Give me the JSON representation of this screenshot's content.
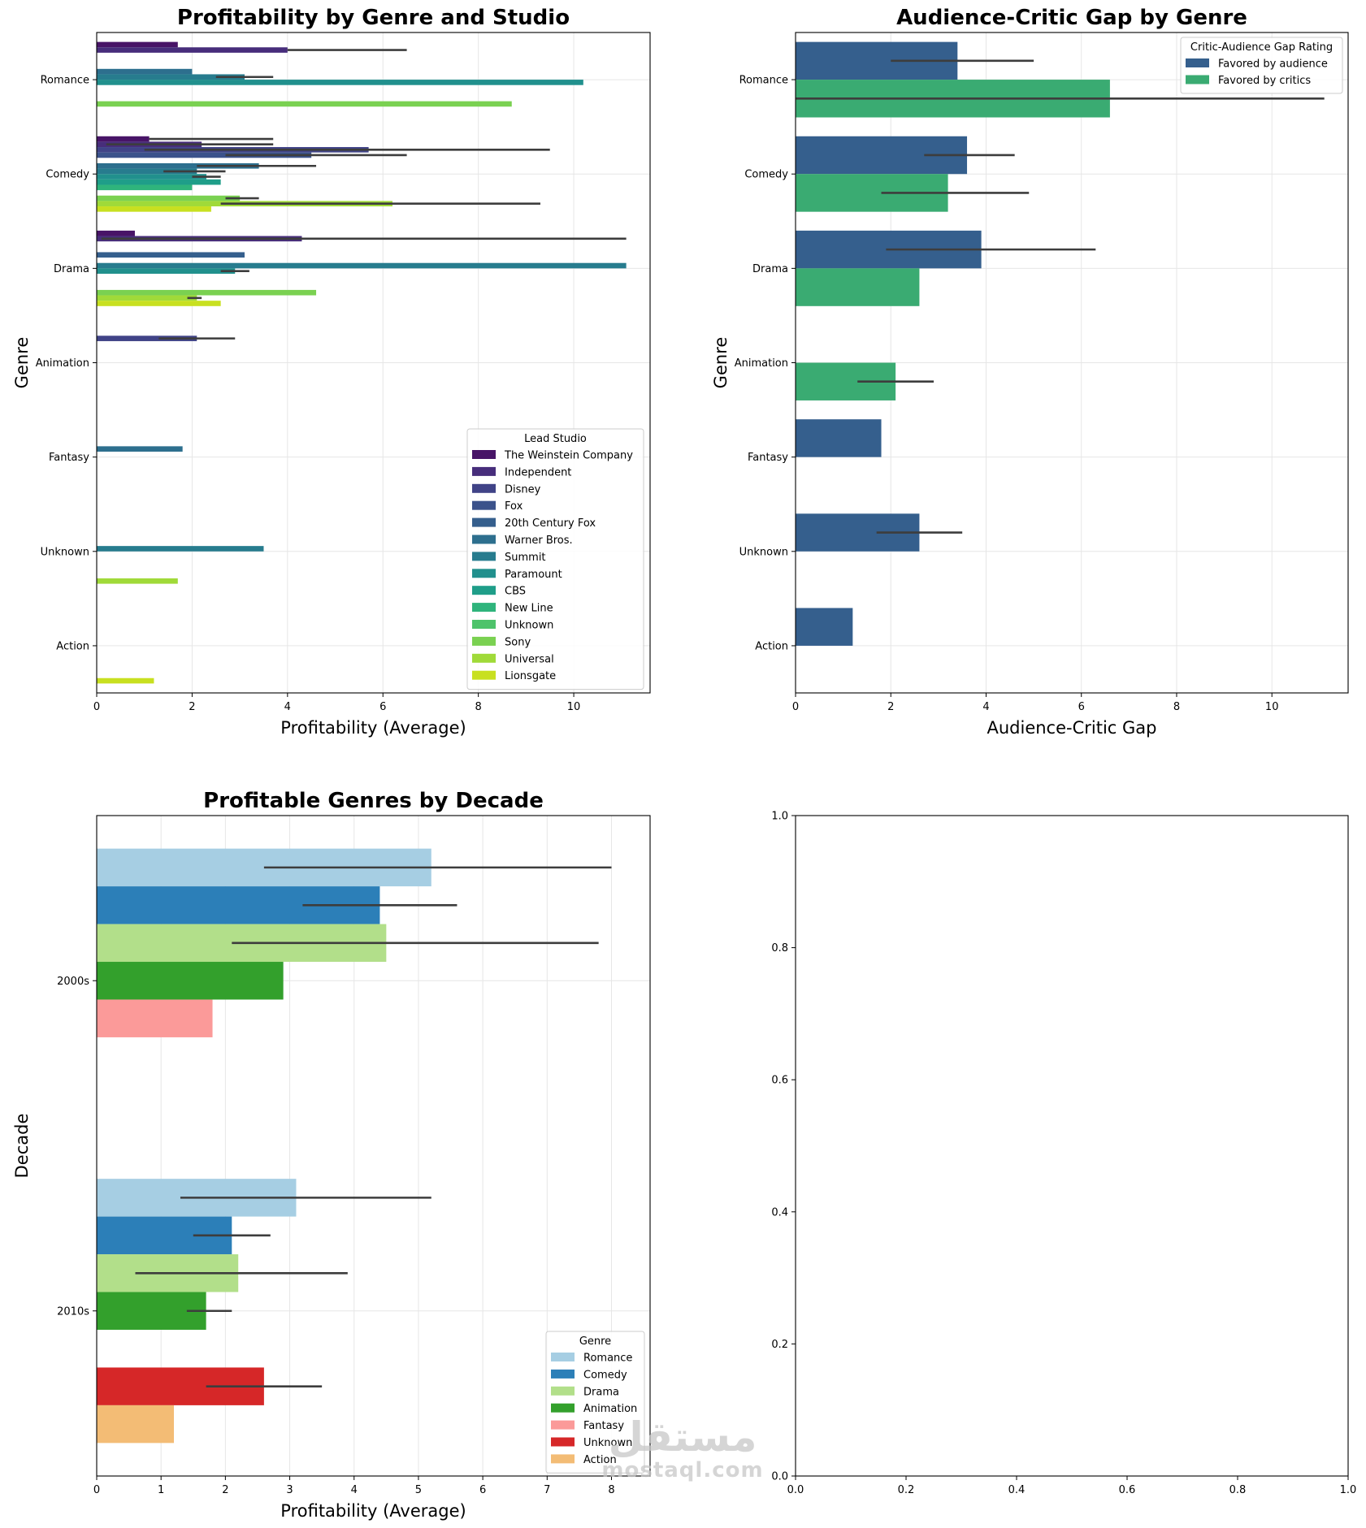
{
  "colors": {
    "grid": "#e6e6e6",
    "errbar": "#3d3d3d",
    "watermark": "#c8c8c8"
  },
  "chart_data": [
    {
      "type": "bar",
      "orientation": "horizontal",
      "title": "Profitability by Genre and Studio",
      "xlabel": "Profitability (Average)",
      "ylabel": "Genre",
      "xlim": [
        0,
        11.6
      ],
      "xticks": [
        0,
        2,
        4,
        6,
        8,
        10
      ],
      "grid": true,
      "legend_title": "Lead Studio",
      "legend_position": "lower right",
      "categories": [
        "Romance",
        "Comedy",
        "Drama",
        "Animation",
        "Fantasy",
        "Unknown",
        "Action"
      ],
      "series": [
        {
          "name": "The Weinstein Company",
          "color": "#481467",
          "values": [
            1.7,
            1.1,
            0.8,
            null,
            null,
            null,
            null
          ],
          "err_low": [
            null,
            null,
            null,
            null,
            null,
            null,
            null
          ],
          "err_high": [
            null,
            3.7,
            null,
            null,
            null,
            null,
            null
          ]
        },
        {
          "name": "Independent",
          "color": "#472d7b",
          "values": [
            4.0,
            2.2,
            4.3,
            null,
            null,
            null,
            null
          ],
          "err_low": [
            null,
            0.2,
            0.1,
            null,
            null,
            null,
            null
          ],
          "err_high": [
            6.5,
            3.7,
            11.1,
            null,
            null,
            null,
            null
          ]
        },
        {
          "name": "Disney",
          "color": "#404387",
          "values": [
            null,
            5.7,
            null,
            2.1,
            null,
            null,
            null
          ],
          "err_low": [
            null,
            1.0,
            null,
            1.3,
            null,
            null,
            null
          ],
          "err_high": [
            null,
            9.5,
            null,
            2.9,
            null,
            null,
            null
          ]
        },
        {
          "name": "Fox",
          "color": "#3b528b",
          "values": [
            null,
            4.5,
            null,
            null,
            null,
            null,
            null
          ],
          "err_low": [
            null,
            2.7,
            null,
            null,
            null,
            null,
            null
          ],
          "err_high": [
            null,
            6.5,
            null,
            null,
            null,
            null,
            null
          ]
        },
        {
          "name": "20th Century Fox",
          "color": "#355f8d",
          "values": [
            null,
            null,
            3.1,
            null,
            null,
            null,
            null
          ],
          "err_low": [
            null,
            null,
            null,
            null,
            null,
            null,
            null
          ],
          "err_high": [
            null,
            null,
            null,
            null,
            null,
            null,
            null
          ]
        },
        {
          "name": "Warner Bros.",
          "color": "#2d6f8e",
          "values": [
            2.0,
            3.4,
            null,
            null,
            1.8,
            null,
            null
          ],
          "err_low": [
            null,
            2.1,
            null,
            null,
            null,
            null,
            null
          ],
          "err_high": [
            null,
            4.6,
            null,
            null,
            null,
            null,
            null
          ]
        },
        {
          "name": "Summit",
          "color": "#277c8e",
          "values": [
            3.1,
            2.1,
            11.1,
            null,
            null,
            3.5,
            null
          ],
          "err_low": [
            2.5,
            1.4,
            null,
            null,
            null,
            null,
            null
          ],
          "err_high": [
            3.7,
            2.7,
            null,
            null,
            null,
            null,
            null
          ]
        },
        {
          "name": "Paramount",
          "color": "#21908d",
          "values": [
            10.2,
            2.3,
            2.9,
            null,
            null,
            null,
            null
          ],
          "err_low": [
            null,
            2.0,
            2.6,
            null,
            null,
            null,
            null
          ],
          "err_high": [
            null,
            2.6,
            3.2,
            null,
            null,
            null,
            null
          ]
        },
        {
          "name": "CBS",
          "color": "#1f9e89",
          "values": [
            null,
            2.6,
            null,
            null,
            null,
            null,
            null
          ],
          "err_low": [
            null,
            null,
            null,
            null,
            null,
            null,
            null
          ],
          "err_high": [
            null,
            null,
            null,
            null,
            null,
            null,
            null
          ]
        },
        {
          "name": "New Line",
          "color": "#2fb47c",
          "values": [
            null,
            2.0,
            null,
            null,
            null,
            null,
            null
          ],
          "err_low": [
            null,
            null,
            null,
            null,
            null,
            null,
            null
          ],
          "err_high": [
            null,
            null,
            null,
            null,
            null,
            null,
            null
          ]
        },
        {
          "name": "Unknown",
          "color": "#4ec36b",
          "values": [
            null,
            null,
            null,
            null,
            null,
            null,
            null
          ],
          "err_low": [
            null,
            null,
            null,
            null,
            null,
            null,
            null
          ],
          "err_high": [
            null,
            null,
            null,
            null,
            null,
            null,
            null
          ]
        },
        {
          "name": "Sony",
          "color": "#7ad151",
          "values": [
            8.7,
            3.0,
            4.6,
            null,
            null,
            null,
            null
          ],
          "err_low": [
            null,
            2.7,
            null,
            null,
            null,
            null,
            null
          ],
          "err_high": [
            null,
            3.4,
            null,
            null,
            null,
            null,
            null
          ]
        },
        {
          "name": "Universal",
          "color": "#a0da39",
          "values": [
            null,
            6.2,
            2.1,
            null,
            null,
            1.7,
            null
          ],
          "err_low": [
            null,
            2.6,
            1.9,
            null,
            null,
            null,
            null
          ],
          "err_high": [
            null,
            9.3,
            2.2,
            null,
            null,
            null,
            null
          ]
        },
        {
          "name": "Lionsgate",
          "color": "#c8e020",
          "values": [
            null,
            2.4,
            2.6,
            null,
            null,
            null,
            1.2
          ],
          "err_low": [
            null,
            null,
            null,
            null,
            null,
            null,
            null
          ],
          "err_high": [
            null,
            null,
            null,
            null,
            null,
            null,
            null
          ]
        }
      ]
    },
    {
      "type": "bar",
      "orientation": "horizontal",
      "title": "Audience-Critic Gap by Genre",
      "xlabel": "Audience-Critic Gap",
      "ylabel": "Genre",
      "xlim": [
        0,
        11.6
      ],
      "xticks": [
        0,
        2,
        4,
        6,
        8,
        10
      ],
      "grid": true,
      "legend_title": "Critic-Audience Gap Rating",
      "legend_position": "upper right",
      "categories": [
        "Romance",
        "Comedy",
        "Drama",
        "Animation",
        "Fantasy",
        "Unknown",
        "Action"
      ],
      "series": [
        {
          "name": "Favored by audience",
          "color": "#355f8d",
          "values": [
            3.4,
            3.6,
            3.9,
            null,
            1.8,
            2.6,
            1.2
          ],
          "err_low": [
            2.0,
            2.7,
            1.9,
            null,
            null,
            1.7,
            null
          ],
          "err_high": [
            5.0,
            4.6,
            6.3,
            null,
            null,
            3.5,
            null
          ]
        },
        {
          "name": "Favored by critics",
          "color": "#3aab72",
          "values": [
            6.6,
            3.2,
            2.6,
            2.1,
            null,
            null,
            null
          ],
          "err_low": [
            0.0,
            1.8,
            null,
            1.3,
            null,
            null,
            null
          ],
          "err_high": [
            11.1,
            4.9,
            null,
            2.9,
            null,
            null,
            null
          ]
        }
      ]
    },
    {
      "type": "bar",
      "orientation": "horizontal",
      "title": "Profitable Genres by Decade",
      "xlabel": "Profitability (Average)",
      "ylabel": "Decade",
      "xlim": [
        0,
        8.6
      ],
      "xticks": [
        0,
        1,
        2,
        3,
        4,
        5,
        6,
        7,
        8
      ],
      "grid": true,
      "legend_title": "Genre",
      "legend_position": "lower right",
      "categories": [
        "2000s",
        "2010s"
      ],
      "series": [
        {
          "name": "Romance",
          "color": "#a6cee3",
          "values": [
            5.2,
            3.1
          ],
          "err_low": [
            2.6,
            1.3
          ],
          "err_high": [
            8.0,
            5.2
          ]
        },
        {
          "name": "Comedy",
          "color": "#2c7fb8",
          "values": [
            4.4,
            2.1
          ],
          "err_low": [
            3.2,
            1.5
          ],
          "err_high": [
            5.6,
            2.7
          ]
        },
        {
          "name": "Drama",
          "color": "#b2df8a",
          "values": [
            4.5,
            2.2
          ],
          "err_low": [
            2.1,
            0.6
          ],
          "err_high": [
            7.8,
            3.9
          ]
        },
        {
          "name": "Animation",
          "color": "#33a02c",
          "values": [
            2.9,
            1.7
          ],
          "err_low": [
            null,
            1.4
          ],
          "err_high": [
            null,
            2.1
          ]
        },
        {
          "name": "Fantasy",
          "color": "#fb9a99",
          "values": [
            1.8,
            null
          ],
          "err_low": [
            null,
            null
          ],
          "err_high": [
            null,
            null
          ]
        },
        {
          "name": "Unknown",
          "color": "#d62728",
          "values": [
            null,
            2.6
          ],
          "err_low": [
            null,
            1.7
          ],
          "err_high": [
            null,
            3.5
          ]
        },
        {
          "name": "Action",
          "color": "#f3bc75",
          "values": [
            null,
            1.2
          ],
          "err_low": [
            null,
            null
          ],
          "err_high": [
            null,
            null
          ]
        }
      ]
    },
    {
      "type": "empty",
      "title": "",
      "xlim": [
        0,
        1
      ],
      "ylim": [
        0,
        1
      ],
      "xticks": [
        "0.0",
        "0.2",
        "0.4",
        "0.6",
        "0.8",
        "1.0"
      ],
      "yticks": [
        "0.0",
        "0.2",
        "0.4",
        "0.6",
        "0.8",
        "1.0"
      ],
      "grid": false
    }
  ],
  "watermark": {
    "text_arabic": "مستقل",
    "text_latin": "mostaql.com"
  }
}
